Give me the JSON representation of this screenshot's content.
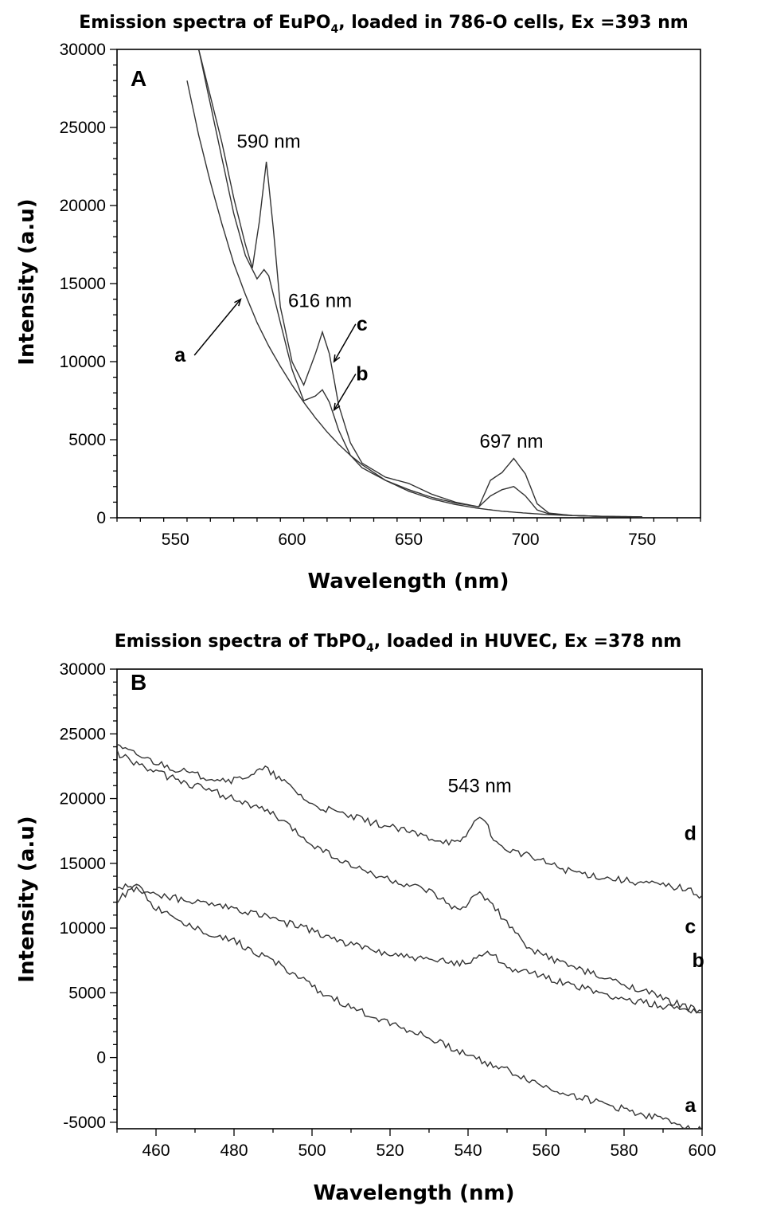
{
  "chart_data": [
    {
      "panel_label": "A",
      "type": "line",
      "title_main": "Emission spectra of EuPO",
      "title_sub": "4",
      "title_rest": ", loaded in 786-O cells, Ex =393 nm",
      "xlabel": "Wavelength (nm)",
      "ylabel": "Intensity (a.u)",
      "xlim": [
        525,
        775
      ],
      "ylim": [
        0,
        30000
      ],
      "xticks": [
        "550",
        "600",
        "650",
        "700",
        "750"
      ],
      "xtick_values": [
        550,
        600,
        650,
        700,
        750
      ],
      "yticks": [
        "0",
        "5000",
        "10000",
        "15000",
        "20000",
        "25000",
        "30000"
      ],
      "ytick_values": [
        0,
        5000,
        10000,
        15000,
        20000,
        25000,
        30000
      ],
      "annotations": [
        {
          "text": "590 nm",
          "x": 590,
          "y": 23700
        },
        {
          "text": "616 nm",
          "x": 612,
          "y": 13500
        },
        {
          "text": "697 nm",
          "x": 694,
          "y": 4500
        }
      ],
      "curve_labels": [
        {
          "text": "a",
          "x": 552,
          "y": 10000,
          "arrow_to": [
            578,
            14000
          ]
        },
        {
          "text": "c",
          "x": 630,
          "y": 12000,
          "arrow_to": [
            618,
            10000
          ]
        },
        {
          "text": "b",
          "x": 630,
          "y": 8800,
          "arrow_to": [
            618,
            6900
          ]
        }
      ],
      "series": [
        {
          "name": "a",
          "x": [
            555,
            560,
            565,
            570,
            575,
            580,
            585,
            590,
            595,
            600,
            605,
            610,
            615,
            620,
            625,
            630,
            640,
            650,
            660,
            670,
            680,
            690,
            700,
            710,
            720,
            730,
            740,
            750
          ],
          "values": [
            28000,
            24500,
            21500,
            18800,
            16300,
            14300,
            12500,
            11000,
            9700,
            8500,
            7400,
            6400,
            5500,
            4700,
            4000,
            3400,
            2400,
            1700,
            1200,
            850,
            600,
            420,
            300,
            200,
            140,
            100,
            80,
            60
          ]
        },
        {
          "name": "b",
          "x": [
            560,
            565,
            570,
            575,
            580,
            585,
            588,
            590,
            595,
            600,
            605,
            610,
            613,
            616,
            620,
            625,
            630,
            640,
            650,
            660,
            670,
            680,
            685,
            690,
            695,
            700,
            705,
            710,
            720,
            730,
            740,
            750
          ],
          "values": [
            30000,
            26500,
            23000,
            19500,
            16800,
            15300,
            15900,
            15500,
            12500,
            9500,
            7500,
            7800,
            8200,
            7400,
            5600,
            4000,
            3200,
            2400,
            1800,
            1300,
            950,
            700,
            1400,
            1800,
            2000,
            1400,
            500,
            250,
            150,
            100,
            70,
            50
          ]
        },
        {
          "name": "c",
          "x": [
            560,
            565,
            570,
            575,
            580,
            583,
            586,
            589,
            592,
            595,
            600,
            605,
            610,
            613,
            616,
            620,
            625,
            630,
            640,
            650,
            660,
            670,
            680,
            685,
            690,
            695,
            700,
            705,
            710,
            720,
            730,
            740,
            750
          ],
          "values": [
            30000,
            27000,
            24000,
            20500,
            17500,
            16000,
            19000,
            22800,
            18500,
            13500,
            10000,
            8500,
            10500,
            11900,
            10500,
            7200,
            4800,
            3500,
            2600,
            2200,
            1500,
            1000,
            700,
            2400,
            2900,
            3800,
            2800,
            900,
            300,
            150,
            100,
            70,
            50
          ]
        }
      ]
    },
    {
      "panel_label": "B",
      "type": "line",
      "title_main": "Emission spectra of TbPO",
      "title_sub": "4",
      "title_rest": ", loaded in HUVEC, Ex =378 nm",
      "xlabel": "Wavelength (nm)",
      "ylabel": "Intensity (a.u)",
      "xlim": [
        450,
        600
      ],
      "ylim": [
        -5500,
        30000
      ],
      "xticks": [
        "460",
        "480",
        "500",
        "520",
        "540",
        "560",
        "580",
        "600"
      ],
      "xtick_values": [
        460,
        480,
        500,
        520,
        540,
        560,
        580,
        600
      ],
      "yticks": [
        "-5000",
        "0",
        "5000",
        "10000",
        "15000",
        "20000",
        "25000",
        "30000"
      ],
      "ytick_values": [
        -5000,
        0,
        5000,
        10000,
        15000,
        20000,
        25000,
        30000
      ],
      "annotations": [
        {
          "text": "543 nm",
          "x": 543,
          "y": 20500
        }
      ],
      "curve_labels": [
        {
          "text": "d",
          "x": 597,
          "y": 16800
        },
        {
          "text": "c",
          "x": 597,
          "y": 9600
        },
        {
          "text": "b",
          "x": 599,
          "y": 7000
        },
        {
          "text": "a",
          "x": 597,
          "y": -4200
        }
      ],
      "series": [
        {
          "name": "a",
          "x": [
            450,
            455,
            460,
            470,
            480,
            490,
            500,
            510,
            520,
            530,
            540,
            550,
            560,
            570,
            580,
            590,
            600
          ],
          "values": [
            12000,
            13600,
            11500,
            10000,
            9000,
            7500,
            5500,
            3800,
            2700,
            1500,
            200,
            -1000,
            -2300,
            -3200,
            -4000,
            -4800,
            -5600
          ]
        },
        {
          "name": "b",
          "x": [
            450,
            460,
            470,
            480,
            490,
            500,
            510,
            520,
            530,
            540,
            545,
            550,
            560,
            570,
            580,
            590,
            600
          ],
          "values": [
            13300,
            12600,
            12000,
            11500,
            10700,
            9800,
            8700,
            8000,
            7500,
            7300,
            8300,
            7000,
            6200,
            5300,
            4500,
            4000,
            3600
          ]
        },
        {
          "name": "c",
          "x": [
            450,
            460,
            470,
            480,
            490,
            500,
            510,
            520,
            530,
            538,
            543,
            547,
            555,
            565,
            575,
            585,
            590,
            600
          ],
          "values": [
            23500,
            22000,
            21000,
            20000,
            18800,
            16500,
            14800,
            13700,
            12800,
            11200,
            12900,
            11500,
            8500,
            7200,
            6100,
            5200,
            4500,
            3500
          ]
        },
        {
          "name": "d",
          "x": [
            450,
            460,
            470,
            480,
            488,
            495,
            500,
            510,
            520,
            530,
            538,
            543,
            548,
            555,
            565,
            575,
            585,
            595,
            600
          ],
          "values": [
            24000,
            22800,
            21800,
            21400,
            22300,
            20800,
            19500,
            18600,
            17800,
            17000,
            16500,
            18800,
            16300,
            15600,
            14500,
            13900,
            13500,
            13100,
            12500
          ]
        }
      ]
    }
  ]
}
